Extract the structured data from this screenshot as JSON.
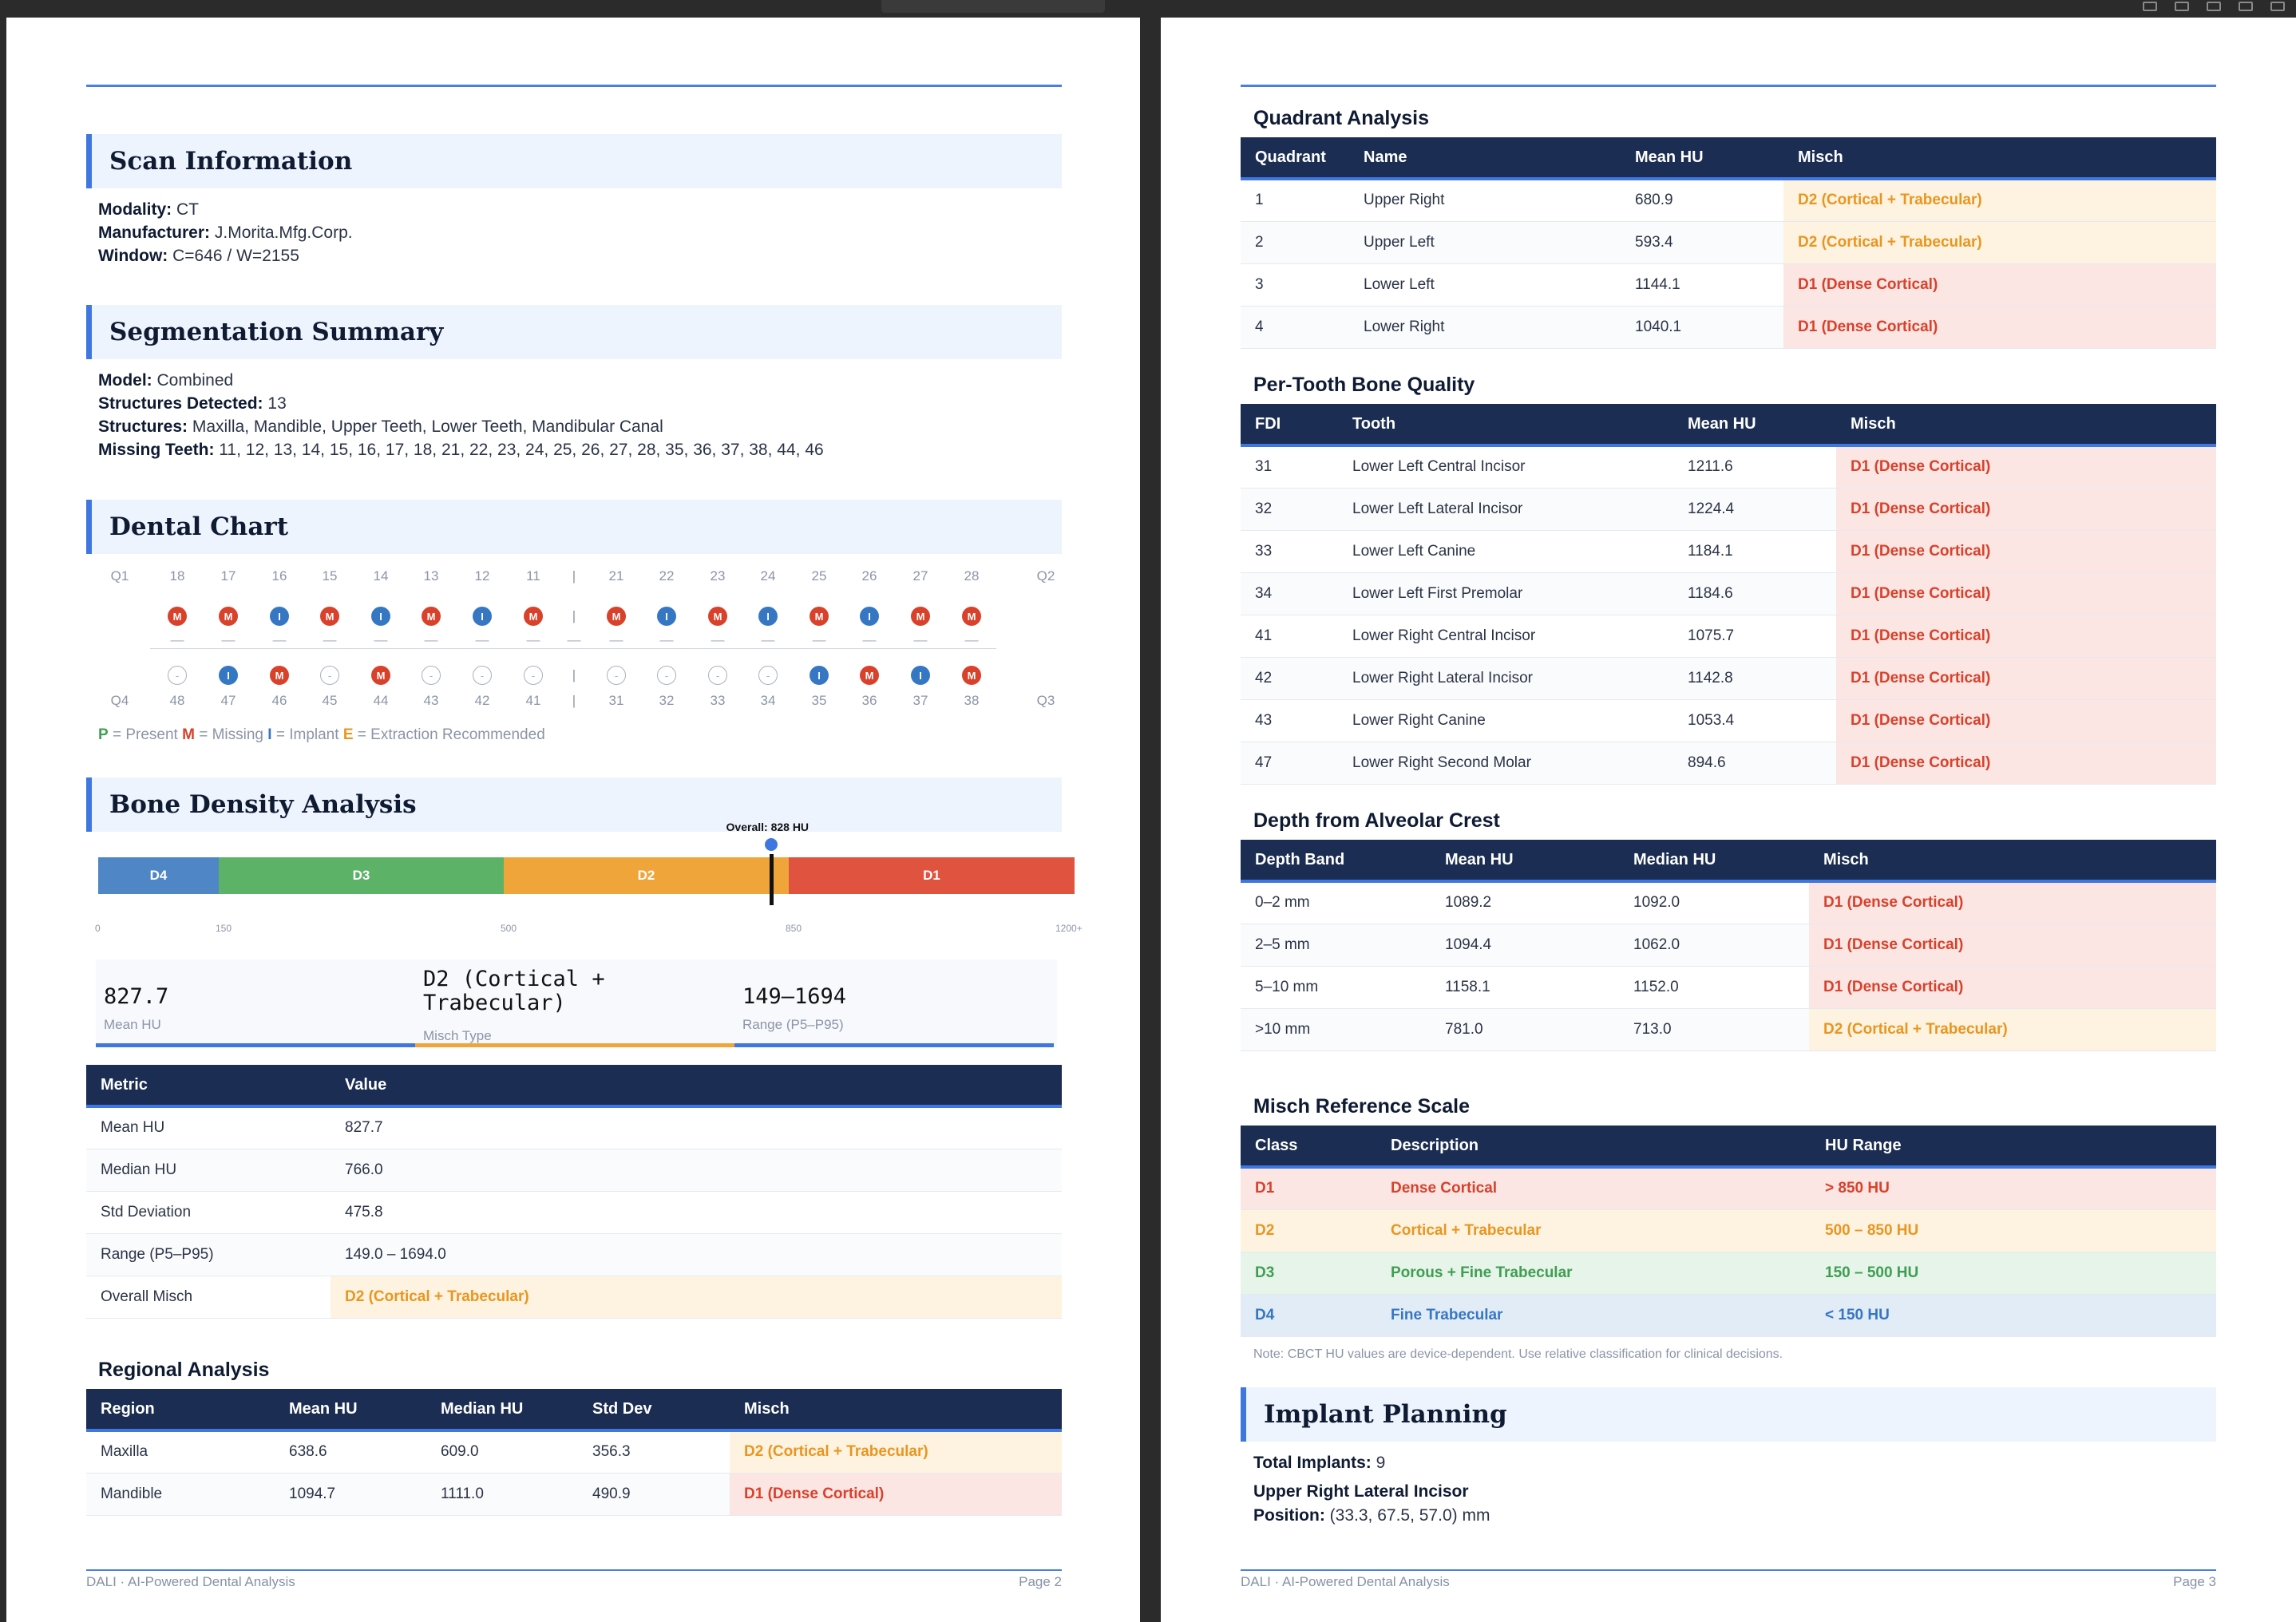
{
  "page2": {
    "scan_info": {
      "title": "Scan Information",
      "modality_label": "Modality:",
      "modality": "CT",
      "manufacturer_label": "Manufacturer:",
      "manufacturer": "J.Morita.Mfg.Corp.",
      "window_label": "Window:",
      "window": "C=646 / W=2155"
    },
    "segmentation": {
      "title": "Segmentation Summary",
      "model_label": "Model:",
      "model": "Combined",
      "detected_label": "Structures Detected:",
      "detected": "13",
      "structures_label": "Structures:",
      "structures": "Maxilla, Mandible, Upper Teeth, Lower Teeth, Mandibular Canal",
      "missing_label": "Missing Teeth:",
      "missing": "11, 12, 13, 14, 15, 16, 17, 18, 21, 22, 23, 24, 25, 26, 27, 28, 35, 36, 37, 38, 44, 46"
    },
    "dental_chart": {
      "title": "Dental Chart",
      "q1": "Q1",
      "q2": "Q2",
      "q3": "Q3",
      "q4": "Q4",
      "upper": [
        {
          "num": "18",
          "status": "M"
        },
        {
          "num": "17",
          "status": "M"
        },
        {
          "num": "16",
          "status": "I"
        },
        {
          "num": "15",
          "status": "M"
        },
        {
          "num": "14",
          "status": "I"
        },
        {
          "num": "13",
          "status": "M"
        },
        {
          "num": "12",
          "status": "I"
        },
        {
          "num": "11",
          "status": "M"
        },
        {
          "num": "21",
          "status": "M"
        },
        {
          "num": "22",
          "status": "I"
        },
        {
          "num": "23",
          "status": "M"
        },
        {
          "num": "24",
          "status": "I"
        },
        {
          "num": "25",
          "status": "M"
        },
        {
          "num": "26",
          "status": "I"
        },
        {
          "num": "27",
          "status": "M"
        },
        {
          "num": "28",
          "status": "M"
        }
      ],
      "lower": [
        {
          "num": "48",
          "status": "P"
        },
        {
          "num": "47",
          "status": "I"
        },
        {
          "num": "46",
          "status": "M"
        },
        {
          "num": "45",
          "status": "P"
        },
        {
          "num": "44",
          "status": "M"
        },
        {
          "num": "43",
          "status": "P"
        },
        {
          "num": "42",
          "status": "P"
        },
        {
          "num": "41",
          "status": "P"
        },
        {
          "num": "31",
          "status": "P"
        },
        {
          "num": "32",
          "status": "P"
        },
        {
          "num": "33",
          "status": "P"
        },
        {
          "num": "34",
          "status": "P"
        },
        {
          "num": "35",
          "status": "I"
        },
        {
          "num": "36",
          "status": "M"
        },
        {
          "num": "37",
          "status": "I"
        },
        {
          "num": "38",
          "status": "M"
        }
      ],
      "icon_text": {
        "M": "M",
        "I": "I",
        "P": "-"
      },
      "divider": "|",
      "dash": "—",
      "legend": {
        "p": "P",
        "p_text": " = Present ",
        "m": "M",
        "m_text": " = Missing ",
        "i": "I",
        "i_text": " = Implant ",
        "e": "E",
        "e_text": " = Extraction Recommended"
      },
      "colors": {
        "present": "#3f9e52",
        "missing": "#d9412b",
        "implant": "#3677c4",
        "extraction": "#e8961f"
      }
    },
    "bone_density": {
      "title": "Bone Density Analysis",
      "overall_label": "Overall: 828 HU",
      "overall_hu": 828,
      "scale_max": 1200,
      "segments": [
        {
          "label": "D4",
          "from": 0,
          "to": 150,
          "color": "#4f86c6"
        },
        {
          "label": "D3",
          "from": 150,
          "to": 500,
          "color": "#5cb368"
        },
        {
          "label": "D2",
          "from": 500,
          "to": 850,
          "color": "#f0a53a"
        },
        {
          "label": "D1",
          "from": 850,
          "to": 1200,
          "color": "#e0533f"
        }
      ],
      "ticks": [
        "0",
        "150",
        "500",
        "850",
        "1200+"
      ],
      "stats": [
        {
          "value": "827.7",
          "label": "Mean HU",
          "color": "#3f77e0"
        },
        {
          "value": "D2 (Cortical + Trabecular)",
          "label": "Misch Type",
          "color": "#f0a53a"
        },
        {
          "value": "149–1694",
          "label": "Range (P5–P95)",
          "color": "#3f77e0"
        }
      ],
      "metrics_headers": [
        "Metric",
        "Value"
      ],
      "metrics": [
        {
          "metric": "Mean HU",
          "value": "827.7"
        },
        {
          "metric": "Median HU",
          "value": "766.0"
        },
        {
          "metric": "Std Deviation",
          "value": "475.8"
        },
        {
          "metric": "Range (P5–P95)",
          "value": "149.0 – 1694.0"
        },
        {
          "metric": "Overall Misch",
          "value": "D2 (Cortical + Trabecular)",
          "cls": "d2"
        }
      ]
    },
    "regional": {
      "title": "Regional Analysis",
      "headers": [
        "Region",
        "Mean HU",
        "Median HU",
        "Std Dev",
        "Misch"
      ],
      "rows": [
        {
          "region": "Maxilla",
          "mean": "638.6",
          "median": "609.0",
          "std": "356.3",
          "misch": "D2 (Cortical + Trabecular)",
          "cls": "d2"
        },
        {
          "region": "Mandible",
          "mean": "1094.7",
          "median": "1111.0",
          "std": "490.9",
          "misch": "D1 (Dense Cortical)",
          "cls": "d1"
        }
      ]
    },
    "footer_left": "DALI · AI-Powered Dental Analysis",
    "footer_right": "Page 2"
  },
  "page3": {
    "quadrant": {
      "title": "Quadrant Analysis",
      "headers": [
        "Quadrant",
        "Name",
        "Mean HU",
        "Misch"
      ],
      "rows": [
        {
          "q": "1",
          "name": "Upper Right",
          "mean": "680.9",
          "misch": "D2 (Cortical + Trabecular)",
          "cls": "d2"
        },
        {
          "q": "2",
          "name": "Upper Left",
          "mean": "593.4",
          "misch": "D2 (Cortical + Trabecular)",
          "cls": "d2"
        },
        {
          "q": "3",
          "name": "Lower Left",
          "mean": "1144.1",
          "misch": "D1 (Dense Cortical)",
          "cls": "d1"
        },
        {
          "q": "4",
          "name": "Lower Right",
          "mean": "1040.1",
          "misch": "D1 (Dense Cortical)",
          "cls": "d1"
        }
      ]
    },
    "per_tooth": {
      "title": "Per-Tooth Bone Quality",
      "headers": [
        "FDI",
        "Tooth",
        "Mean HU",
        "Misch"
      ],
      "rows": [
        {
          "fdi": "31",
          "tooth": "Lower Left Central Incisor",
          "mean": "1211.6",
          "misch": "D1 (Dense Cortical)",
          "cls": "d1"
        },
        {
          "fdi": "32",
          "tooth": "Lower Left Lateral Incisor",
          "mean": "1224.4",
          "misch": "D1 (Dense Cortical)",
          "cls": "d1"
        },
        {
          "fdi": "33",
          "tooth": "Lower Left Canine",
          "mean": "1184.1",
          "misch": "D1 (Dense Cortical)",
          "cls": "d1"
        },
        {
          "fdi": "34",
          "tooth": "Lower Left First Premolar",
          "mean": "1184.6",
          "misch": "D1 (Dense Cortical)",
          "cls": "d1"
        },
        {
          "fdi": "41",
          "tooth": "Lower Right Central Incisor",
          "mean": "1075.7",
          "misch": "D1 (Dense Cortical)",
          "cls": "d1"
        },
        {
          "fdi": "42",
          "tooth": "Lower Right Lateral Incisor",
          "mean": "1142.8",
          "misch": "D1 (Dense Cortical)",
          "cls": "d1"
        },
        {
          "fdi": "43",
          "tooth": "Lower Right Canine",
          "mean": "1053.4",
          "misch": "D1 (Dense Cortical)",
          "cls": "d1"
        },
        {
          "fdi": "47",
          "tooth": "Lower Right Second Molar",
          "mean": "894.6",
          "misch": "D1 (Dense Cortical)",
          "cls": "d1"
        }
      ]
    },
    "depth": {
      "title": "Depth from Alveolar Crest",
      "headers": [
        "Depth Band",
        "Mean HU",
        "Median HU",
        "Misch"
      ],
      "rows": [
        {
          "band": "0–2 mm",
          "mean": "1089.2",
          "median": "1092.0",
          "misch": "D1 (Dense Cortical)",
          "cls": "d1"
        },
        {
          "band": "2–5 mm",
          "mean": "1094.4",
          "median": "1062.0",
          "misch": "D1 (Dense Cortical)",
          "cls": "d1"
        },
        {
          "band": "5–10 mm",
          "mean": "1158.1",
          "median": "1152.0",
          "misch": "D1 (Dense Cortical)",
          "cls": "d1"
        },
        {
          "band": ">10 mm",
          "mean": "781.0",
          "median": "713.0",
          "misch": "D2 (Cortical + Trabecular)",
          "cls": "d2"
        }
      ]
    },
    "misch_scale": {
      "title": "Misch Reference Scale",
      "headers": [
        "Class",
        "Description",
        "HU Range"
      ],
      "rows": [
        {
          "cls_name": "D1",
          "desc": "Dense Cortical",
          "range": "> 850 HU",
          "cls": "d1"
        },
        {
          "cls_name": "D2",
          "desc": "Cortical + Trabecular",
          "range": "500 – 850 HU",
          "cls": "d2"
        },
        {
          "cls_name": "D3",
          "desc": "Porous + Fine Trabecular",
          "range": "150 – 500 HU",
          "cls": "d3"
        },
        {
          "cls_name": "D4",
          "desc": "Fine Trabecular",
          "range": "< 150 HU",
          "cls": "d4"
        }
      ],
      "note": "Note: CBCT HU values are device-dependent. Use relative classification for clinical decisions."
    },
    "implant": {
      "title": "Implant Planning",
      "total_label": "Total Implants:",
      "total": "9",
      "tooth": "Upper Right Lateral Incisor",
      "position_label": "Position:",
      "position": "(33.3, 67.5, 57.0) mm"
    },
    "footer_left": "DALI · AI-Powered Dental Analysis",
    "footer_right": "Page 3"
  }
}
